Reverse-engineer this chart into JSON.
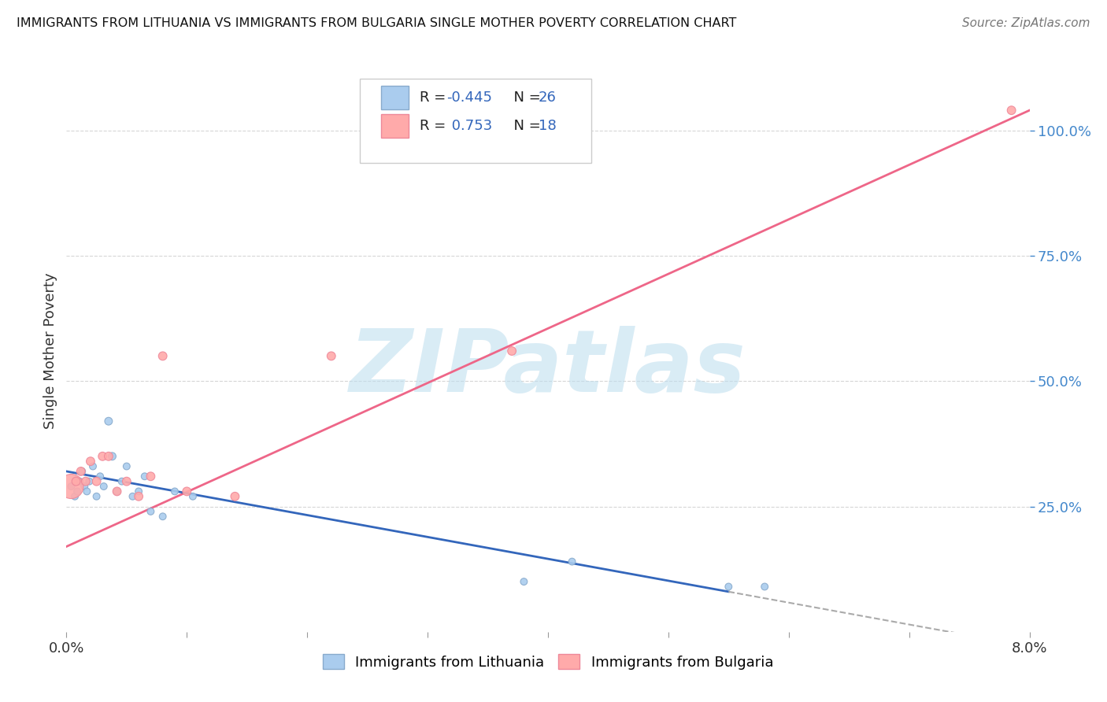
{
  "title": "IMMIGRANTS FROM LITHUANIA VS IMMIGRANTS FROM BULGARIA SINGLE MOTHER POVERTY CORRELATION CHART",
  "source": "Source: ZipAtlas.com",
  "ylabel": "Single Mother Poverty",
  "yticks": [
    25.0,
    50.0,
    75.0,
    100.0
  ],
  "ytick_labels": [
    "25.0%",
    "50.0%",
    "75.0%",
    "100.0%"
  ],
  "blue_marker_fill": "#AACCEE",
  "blue_marker_edge": "#88AACC",
  "pink_marker_fill": "#FFAAAA",
  "pink_marker_edge": "#EE8899",
  "trend_blue": "#3366BB",
  "trend_pink": "#EE6688",
  "trend_gray": "#AAAAAA",
  "watermark": "ZIPatlas",
  "watermark_color": "#BBDDEE",
  "bg_color": "#FFFFFF",
  "grid_color": "#CCCCCC",
  "lithuania_x": [
    0.04,
    0.07,
    0.09,
    0.11,
    0.13,
    0.15,
    0.17,
    0.19,
    0.22,
    0.25,
    0.28,
    0.31,
    0.35,
    0.38,
    0.42,
    0.46,
    0.5,
    0.55,
    0.6,
    0.65,
    0.7,
    0.8,
    0.9,
    1.05,
    3.8,
    4.2,
    5.5,
    5.8
  ],
  "lithuania_y": [
    29,
    27,
    28,
    30,
    32,
    29,
    28,
    30,
    33,
    27,
    31,
    29,
    42,
    35,
    28,
    30,
    33,
    27,
    28,
    31,
    24,
    23,
    28,
    27,
    10,
    14,
    9,
    9
  ],
  "lithuania_size": [
    40,
    40,
    40,
    40,
    40,
    40,
    40,
    40,
    40,
    40,
    40,
    40,
    50,
    50,
    40,
    40,
    40,
    40,
    40,
    40,
    40,
    40,
    40,
    40,
    40,
    40,
    40,
    40
  ],
  "bulgaria_x": [
    0.04,
    0.08,
    0.12,
    0.16,
    0.2,
    0.25,
    0.3,
    0.35,
    0.42,
    0.5,
    0.6,
    0.7,
    0.8,
    1.0,
    1.4,
    2.2,
    3.7,
    7.85
  ],
  "bulgaria_y": [
    29,
    30,
    32,
    30,
    34,
    30,
    35,
    35,
    28,
    30,
    27,
    31,
    55,
    28,
    27,
    55,
    56,
    104
  ],
  "bulgaria_size": [
    500,
    60,
    60,
    60,
    60,
    60,
    60,
    60,
    60,
    60,
    60,
    60,
    60,
    60,
    60,
    60,
    60,
    60
  ],
  "xmin": 0.0,
  "xmax": 8.0,
  "ymin": 0.0,
  "ymax": 112.0,
  "blue_trendline_x0": 0.0,
  "blue_trendline_y0": 32.0,
  "blue_trendline_x1": 5.5,
  "blue_trendline_y1": 8.0,
  "blue_dash_x0": 5.5,
  "blue_dash_x1": 8.0,
  "pink_trendline_x0": 0.0,
  "pink_trendline_y0": 17.0,
  "pink_trendline_x1": 8.0,
  "pink_trendline_y1": 104.0
}
